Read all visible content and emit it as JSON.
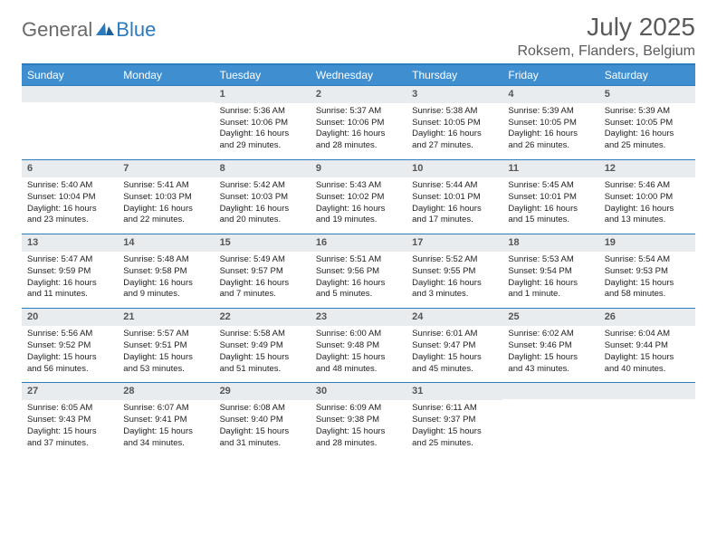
{
  "brand": {
    "general": "General",
    "blue": "Blue"
  },
  "header": {
    "title": "July 2025",
    "location": "Roksem, Flanders, Belgium"
  },
  "colors": {
    "accent": "#3f8fd0",
    "accent_border": "#2b7bbd",
    "daynum_bg": "#e9ecef",
    "text": "#333333",
    "muted": "#6a6a6a"
  },
  "daysOfWeek": [
    "Sunday",
    "Monday",
    "Tuesday",
    "Wednesday",
    "Thursday",
    "Friday",
    "Saturday"
  ],
  "weeks": [
    [
      {
        "empty": true
      },
      {
        "empty": true
      },
      {
        "num": "1",
        "sunrise": "Sunrise: 5:36 AM",
        "sunset": "Sunset: 10:06 PM",
        "daylight": "Daylight: 16 hours and 29 minutes."
      },
      {
        "num": "2",
        "sunrise": "Sunrise: 5:37 AM",
        "sunset": "Sunset: 10:06 PM",
        "daylight": "Daylight: 16 hours and 28 minutes."
      },
      {
        "num": "3",
        "sunrise": "Sunrise: 5:38 AM",
        "sunset": "Sunset: 10:05 PM",
        "daylight": "Daylight: 16 hours and 27 minutes."
      },
      {
        "num": "4",
        "sunrise": "Sunrise: 5:39 AM",
        "sunset": "Sunset: 10:05 PM",
        "daylight": "Daylight: 16 hours and 26 minutes."
      },
      {
        "num": "5",
        "sunrise": "Sunrise: 5:39 AM",
        "sunset": "Sunset: 10:05 PM",
        "daylight": "Daylight: 16 hours and 25 minutes."
      }
    ],
    [
      {
        "num": "6",
        "sunrise": "Sunrise: 5:40 AM",
        "sunset": "Sunset: 10:04 PM",
        "daylight": "Daylight: 16 hours and 23 minutes."
      },
      {
        "num": "7",
        "sunrise": "Sunrise: 5:41 AM",
        "sunset": "Sunset: 10:03 PM",
        "daylight": "Daylight: 16 hours and 22 minutes."
      },
      {
        "num": "8",
        "sunrise": "Sunrise: 5:42 AM",
        "sunset": "Sunset: 10:03 PM",
        "daylight": "Daylight: 16 hours and 20 minutes."
      },
      {
        "num": "9",
        "sunrise": "Sunrise: 5:43 AM",
        "sunset": "Sunset: 10:02 PM",
        "daylight": "Daylight: 16 hours and 19 minutes."
      },
      {
        "num": "10",
        "sunrise": "Sunrise: 5:44 AM",
        "sunset": "Sunset: 10:01 PM",
        "daylight": "Daylight: 16 hours and 17 minutes."
      },
      {
        "num": "11",
        "sunrise": "Sunrise: 5:45 AM",
        "sunset": "Sunset: 10:01 PM",
        "daylight": "Daylight: 16 hours and 15 minutes."
      },
      {
        "num": "12",
        "sunrise": "Sunrise: 5:46 AM",
        "sunset": "Sunset: 10:00 PM",
        "daylight": "Daylight: 16 hours and 13 minutes."
      }
    ],
    [
      {
        "num": "13",
        "sunrise": "Sunrise: 5:47 AM",
        "sunset": "Sunset: 9:59 PM",
        "daylight": "Daylight: 16 hours and 11 minutes."
      },
      {
        "num": "14",
        "sunrise": "Sunrise: 5:48 AM",
        "sunset": "Sunset: 9:58 PM",
        "daylight": "Daylight: 16 hours and 9 minutes."
      },
      {
        "num": "15",
        "sunrise": "Sunrise: 5:49 AM",
        "sunset": "Sunset: 9:57 PM",
        "daylight": "Daylight: 16 hours and 7 minutes."
      },
      {
        "num": "16",
        "sunrise": "Sunrise: 5:51 AM",
        "sunset": "Sunset: 9:56 PM",
        "daylight": "Daylight: 16 hours and 5 minutes."
      },
      {
        "num": "17",
        "sunrise": "Sunrise: 5:52 AM",
        "sunset": "Sunset: 9:55 PM",
        "daylight": "Daylight: 16 hours and 3 minutes."
      },
      {
        "num": "18",
        "sunrise": "Sunrise: 5:53 AM",
        "sunset": "Sunset: 9:54 PM",
        "daylight": "Daylight: 16 hours and 1 minute."
      },
      {
        "num": "19",
        "sunrise": "Sunrise: 5:54 AM",
        "sunset": "Sunset: 9:53 PM",
        "daylight": "Daylight: 15 hours and 58 minutes."
      }
    ],
    [
      {
        "num": "20",
        "sunrise": "Sunrise: 5:56 AM",
        "sunset": "Sunset: 9:52 PM",
        "daylight": "Daylight: 15 hours and 56 minutes."
      },
      {
        "num": "21",
        "sunrise": "Sunrise: 5:57 AM",
        "sunset": "Sunset: 9:51 PM",
        "daylight": "Daylight: 15 hours and 53 minutes."
      },
      {
        "num": "22",
        "sunrise": "Sunrise: 5:58 AM",
        "sunset": "Sunset: 9:49 PM",
        "daylight": "Daylight: 15 hours and 51 minutes."
      },
      {
        "num": "23",
        "sunrise": "Sunrise: 6:00 AM",
        "sunset": "Sunset: 9:48 PM",
        "daylight": "Daylight: 15 hours and 48 minutes."
      },
      {
        "num": "24",
        "sunrise": "Sunrise: 6:01 AM",
        "sunset": "Sunset: 9:47 PM",
        "daylight": "Daylight: 15 hours and 45 minutes."
      },
      {
        "num": "25",
        "sunrise": "Sunrise: 6:02 AM",
        "sunset": "Sunset: 9:46 PM",
        "daylight": "Daylight: 15 hours and 43 minutes."
      },
      {
        "num": "26",
        "sunrise": "Sunrise: 6:04 AM",
        "sunset": "Sunset: 9:44 PM",
        "daylight": "Daylight: 15 hours and 40 minutes."
      }
    ],
    [
      {
        "num": "27",
        "sunrise": "Sunrise: 6:05 AM",
        "sunset": "Sunset: 9:43 PM",
        "daylight": "Daylight: 15 hours and 37 minutes."
      },
      {
        "num": "28",
        "sunrise": "Sunrise: 6:07 AM",
        "sunset": "Sunset: 9:41 PM",
        "daylight": "Daylight: 15 hours and 34 minutes."
      },
      {
        "num": "29",
        "sunrise": "Sunrise: 6:08 AM",
        "sunset": "Sunset: 9:40 PM",
        "daylight": "Daylight: 15 hours and 31 minutes."
      },
      {
        "num": "30",
        "sunrise": "Sunrise: 6:09 AM",
        "sunset": "Sunset: 9:38 PM",
        "daylight": "Daylight: 15 hours and 28 minutes."
      },
      {
        "num": "31",
        "sunrise": "Sunrise: 6:11 AM",
        "sunset": "Sunset: 9:37 PM",
        "daylight": "Daylight: 15 hours and 25 minutes."
      },
      {
        "empty": true
      },
      {
        "empty": true
      }
    ]
  ]
}
